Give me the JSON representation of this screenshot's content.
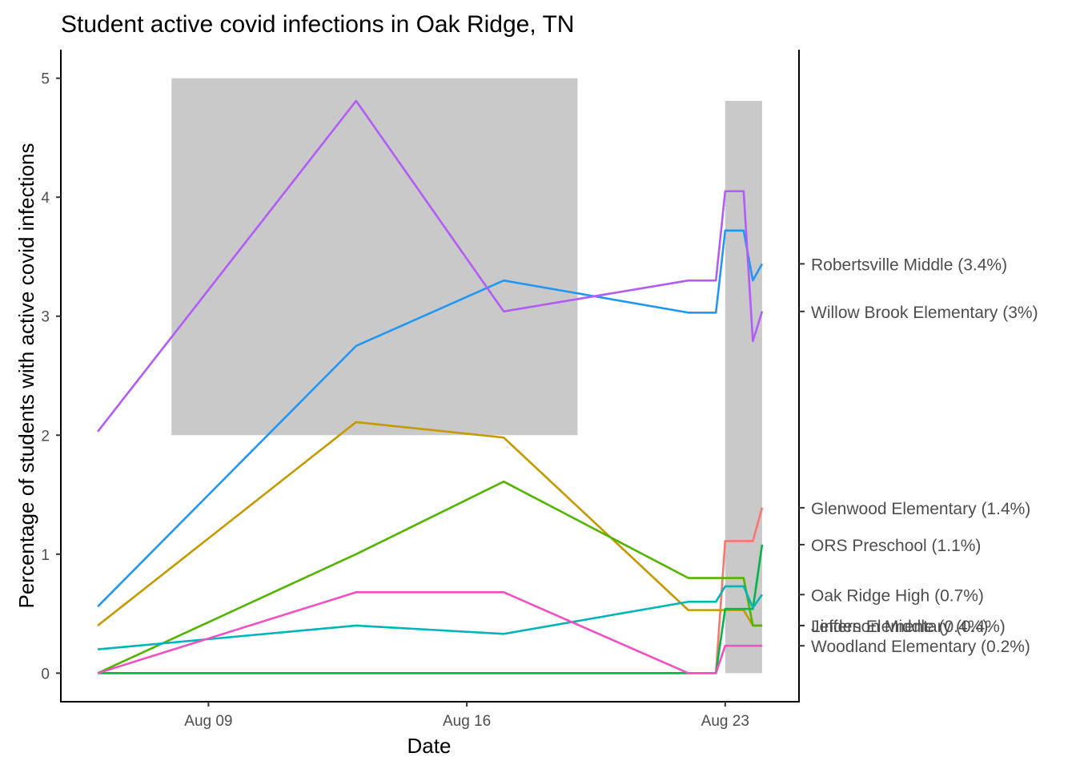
{
  "chart_data": {
    "type": "line",
    "title": "Student active covid infections in Oak Ridge, TN",
    "xlabel": "Date",
    "ylabel": "Percentage of students with active covid infections",
    "x_type": "date",
    "xlim": [
      "2021-08-05",
      "2021-08-25"
    ],
    "ylim": [
      -0.24,
      5.24
    ],
    "x_ticks": [
      {
        "date": "2021-08-09",
        "label": "Aug 09"
      },
      {
        "date": "2021-08-16",
        "label": "Aug 16"
      },
      {
        "date": "2021-08-23",
        "label": "Aug 23"
      }
    ],
    "y_ticks": [
      0,
      1,
      2,
      3,
      4,
      5
    ],
    "grid": false,
    "legend": "direct labels on secondary right axis",
    "shaded_regions": [
      {
        "x_start": "2021-08-08",
        "x_end": "2021-08-19",
        "y_start": 2,
        "y_end": 5
      },
      {
        "x_start": "2021-08-23",
        "x_end": "2021-08-24",
        "y_start": 0,
        "y_end": 4.81
      }
    ],
    "series": [
      {
        "color": "#F8766D",
        "points": [
          [
            "2021-08-06",
            0
          ],
          [
            "2021-08-22",
            0
          ],
          [
            "2021-08-22 18:00",
            0
          ],
          [
            "2021-08-23",
            1.11
          ],
          [
            "2021-08-23 12:00",
            1.11
          ],
          [
            "2021-08-23 18:00",
            1.11
          ],
          [
            "2021-08-24",
            1.39
          ]
        ]
      },
      {
        "color": "#C49A00",
        "points": [
          [
            "2021-08-06",
            0.4
          ],
          [
            "2021-08-13",
            2.11
          ],
          [
            "2021-08-17",
            1.98
          ],
          [
            "2021-08-22",
            0.53
          ],
          [
            "2021-08-22 18:00",
            0.53
          ],
          [
            "2021-08-23",
            0.53
          ],
          [
            "2021-08-23 12:00",
            0.53
          ],
          [
            "2021-08-23 18:00",
            0.4
          ],
          [
            "2021-08-24",
            0.4
          ]
        ]
      },
      {
        "color": "#53B400",
        "points": [
          [
            "2021-08-06",
            0
          ],
          [
            "2021-08-13",
            1.0
          ],
          [
            "2021-08-17",
            1.61
          ],
          [
            "2021-08-22",
            0.8
          ],
          [
            "2021-08-22 18:00",
            0.8
          ],
          [
            "2021-08-23",
            0.8
          ],
          [
            "2021-08-23 12:00",
            0.8
          ],
          [
            "2021-08-23 18:00",
            0.4
          ],
          [
            "2021-08-24",
            0.4
          ]
        ]
      },
      {
        "color": "#00B64A",
        "points": [
          [
            "2021-08-06",
            0
          ],
          [
            "2021-08-22",
            0
          ],
          [
            "2021-08-22 18:00",
            0
          ],
          [
            "2021-08-23",
            0.54
          ],
          [
            "2021-08-23 12:00",
            0.54
          ],
          [
            "2021-08-23 18:00",
            0.54
          ],
          [
            "2021-08-24",
            1.08
          ]
        ]
      },
      {
        "color": "#00B5B8",
        "points": [
          [
            "2021-08-06",
            0.2
          ],
          [
            "2021-08-13",
            0.4
          ],
          [
            "2021-08-17",
            0.33
          ],
          [
            "2021-08-22",
            0.6
          ],
          [
            "2021-08-22 18:00",
            0.6
          ],
          [
            "2021-08-23",
            0.73
          ],
          [
            "2021-08-23 12:00",
            0.73
          ],
          [
            "2021-08-23 18:00",
            0.55
          ],
          [
            "2021-08-24",
            0.66
          ]
        ]
      },
      {
        "color": "#2196F3",
        "points": [
          [
            "2021-08-06",
            0.56
          ],
          [
            "2021-08-13",
            2.75
          ],
          [
            "2021-08-17",
            3.3
          ],
          [
            "2021-08-22",
            3.03
          ],
          [
            "2021-08-22 18:00",
            3.03
          ],
          [
            "2021-08-23",
            3.72
          ],
          [
            "2021-08-23 12:00",
            3.72
          ],
          [
            "2021-08-23 18:00",
            3.3
          ],
          [
            "2021-08-24",
            3.44
          ]
        ]
      },
      {
        "color": "#B15CF5",
        "points": [
          [
            "2021-08-06",
            2.03
          ],
          [
            "2021-08-13",
            4.81
          ],
          [
            "2021-08-17",
            3.04
          ],
          [
            "2021-08-22",
            3.3
          ],
          [
            "2021-08-22 18:00",
            3.3
          ],
          [
            "2021-08-23",
            4.05
          ],
          [
            "2021-08-23 12:00",
            4.05
          ],
          [
            "2021-08-23 18:00",
            2.79
          ],
          [
            "2021-08-24",
            3.04
          ]
        ]
      },
      {
        "color": "#F24FC3",
        "points": [
          [
            "2021-08-06",
            0
          ],
          [
            "2021-08-13",
            0.68
          ],
          [
            "2021-08-17",
            0.68
          ],
          [
            "2021-08-22",
            0
          ],
          [
            "2021-08-22 18:00",
            0
          ],
          [
            "2021-08-23",
            0.23
          ],
          [
            "2021-08-23 12:00",
            0.23
          ],
          [
            "2021-08-23 18:00",
            0.23
          ],
          [
            "2021-08-24",
            0.23
          ]
        ]
      }
    ],
    "right_axis_labels": [
      {
        "text": "Robertsville Middle (3.4%)",
        "y": 3.44
      },
      {
        "text": "Willow Brook Elementary (3%)",
        "y": 3.04
      },
      {
        "text": "Glenwood Elementary (1.4%)",
        "y": 1.39
      },
      {
        "text": "ORS Preschool (1.1%)",
        "y": 1.08
      },
      {
        "text": "Oak Ridge High (0.7%)",
        "y": 0.66
      },
      {
        "text": "Linden Elementary (0.4%)",
        "y": 0.4
      },
      {
        "text": "Jefferson Middle (0.4%)",
        "y": 0.4
      },
      {
        "text": "Woodland Elementary (0.2%)",
        "y": 0.23
      }
    ]
  }
}
